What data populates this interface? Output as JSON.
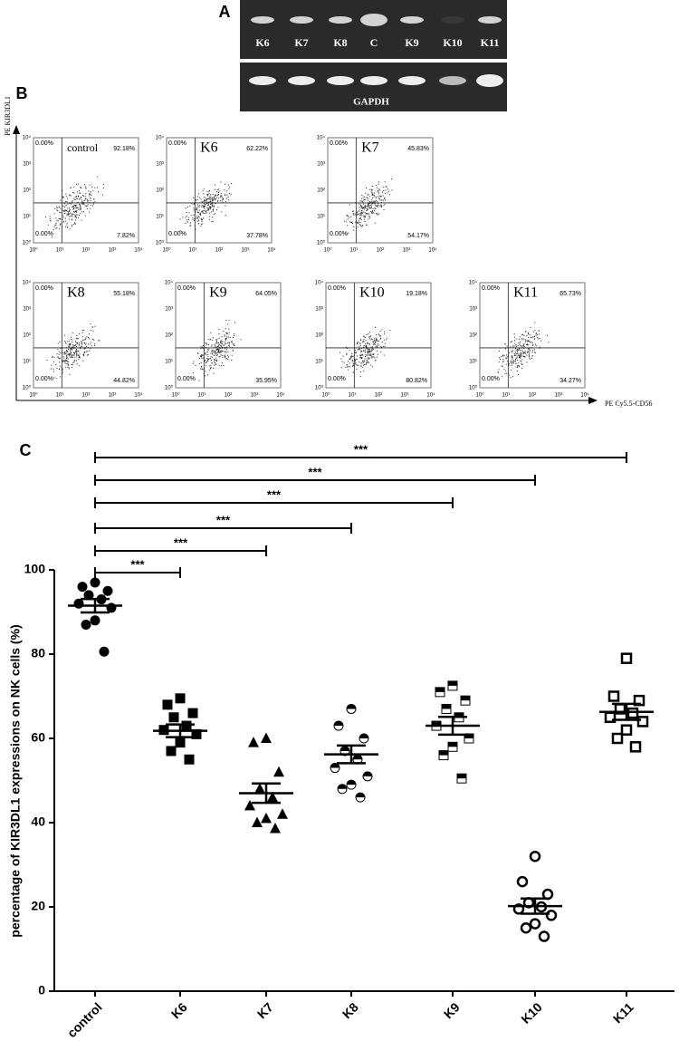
{
  "panel_labels": [
    "A",
    "B",
    "C"
  ],
  "gel": {
    "lanes": [
      "K6",
      "K7",
      "K8",
      "C",
      "K9",
      "K10",
      "K11"
    ],
    "control_label": "GAPDH"
  },
  "flow": {
    "y_axis_label": "PE KIR3DL1",
    "x_axis_label": "PE Cy5.5-CD56",
    "tick_labels": [
      "10⁰",
      "10¹",
      "10²",
      "10³",
      "10⁴"
    ],
    "plots": [
      {
        "title": "control",
        "ul": "0.00%",
        "ur": "92.18%",
        "ll": "0.00%",
        "lr": "7.82%"
      },
      {
        "title": "K6",
        "ul": "0.00%",
        "ur": "62.22%",
        "ll": "0.00%",
        "lr": "37.78%"
      },
      {
        "title": "K7",
        "ul": "0.00%",
        "ur": "45.83%",
        "ll": "0.00%",
        "lr": "54.17%"
      },
      {
        "title": "K8",
        "ul": "0.00%",
        "ur": "55.18%",
        "ll": "0.00%",
        "lr": "44.82%"
      },
      {
        "title": "K9",
        "ul": "0.00%",
        "ur": "64.05%",
        "ll": "0.00%",
        "lr": "35.95%"
      },
      {
        "title": "K10",
        "ul": "0.00%",
        "ur": "19.18%",
        "ll": "0.00%",
        "lr": "80.82%"
      },
      {
        "title": "K11",
        "ul": "0.00%",
        "ur": "65.73%",
        "ll": "0.00%",
        "lr": "34.27%"
      }
    ]
  },
  "chart_data": {
    "type": "dot",
    "y_label": "percentage of KIR3DL1 expressions on NK cells (%)",
    "categories": [
      "control",
      "K6",
      "K7",
      "K8",
      "K9",
      "K10",
      "K11"
    ],
    "markers": [
      "filled-circle",
      "filled-square",
      "filled-triangle",
      "half-circle",
      "half-square",
      "open-circle",
      "open-square"
    ],
    "color": "#000000",
    "values": [
      [
        97,
        96,
        95,
        94,
        93,
        92,
        91,
        88,
        87,
        80.6
      ],
      [
        69.5,
        68,
        66,
        65,
        63,
        62,
        61,
        59,
        57,
        55
      ],
      [
        60,
        59,
        52,
        48,
        46,
        44,
        42,
        41,
        40,
        38.6
      ],
      [
        67,
        63,
        60,
        57,
        55,
        53,
        51,
        49,
        48,
        46
      ],
      [
        72.5,
        71,
        69,
        67,
        65,
        63,
        60,
        58,
        56,
        50.5
      ],
      [
        32,
        26,
        23,
        21,
        20,
        19.5,
        18,
        16,
        15,
        13
      ],
      [
        79,
        70,
        69,
        67,
        66,
        65,
        64,
        62,
        60,
        58
      ]
    ],
    "means": [
      91.5,
      61.8,
      47.0,
      56.2,
      63.0,
      20.2,
      66.3
    ],
    "sems": [
      1.6,
      1.5,
      2.3,
      2.1,
      2.1,
      1.8,
      1.9
    ],
    "significance": [
      {
        "from": "control",
        "to": "K6",
        "label": "***"
      },
      {
        "from": "control",
        "to": "K7",
        "label": "***"
      },
      {
        "from": "control",
        "to": "K8",
        "label": "***"
      },
      {
        "from": "control",
        "to": "K9",
        "label": "***"
      },
      {
        "from": "control",
        "to": "K10",
        "label": "***"
      },
      {
        "from": "control",
        "to": "K11",
        "label": "***"
      }
    ],
    "ylim": [
      0,
      100
    ],
    "yticks": [
      0,
      20,
      40,
      60,
      80,
      100
    ]
  }
}
